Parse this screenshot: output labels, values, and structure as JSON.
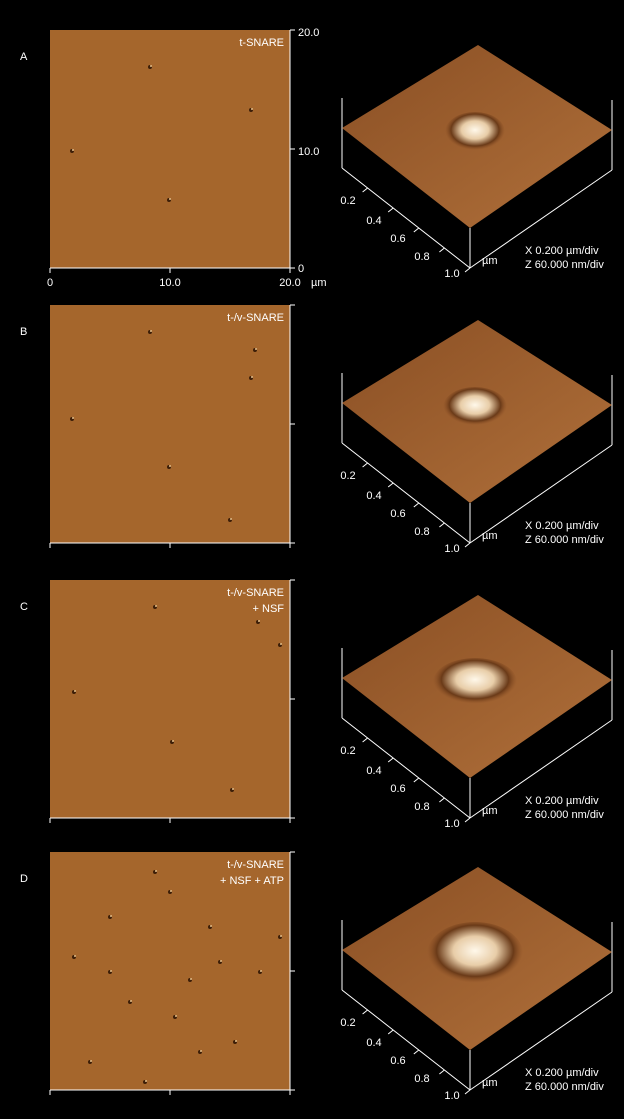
{
  "panels": [
    {
      "letter": "A",
      "label": [
        "t-SNARE"
      ],
      "scale": {
        "x_ticks": [
          "0",
          "10.0",
          "20.0"
        ],
        "x_unit": "µm",
        "y_ticks": [
          "20.0",
          "10.0",
          "0"
        ]
      },
      "surface": {
        "ticks": [
          "0.2",
          "0.4",
          "0.6",
          "0.8",
          "1.0"
        ],
        "unit": "µm",
        "x_scale": "X 0.200 µm/div",
        "z_scale": "Z 60.000 nm/div"
      }
    },
    {
      "letter": "B",
      "label": [
        "t-/v-SNARE"
      ],
      "surface": {
        "ticks": [
          "0.2",
          "0.4",
          "0.6",
          "0.8",
          "1.0"
        ],
        "unit": "µm",
        "x_scale": "X 0.200 µm/div",
        "z_scale": "Z 60.000 nm/div"
      }
    },
    {
      "letter": "C",
      "label": [
        "t-/v-SNARE",
        "+ NSF"
      ],
      "surface": {
        "ticks": [
          "0.2",
          "0.4",
          "0.6",
          "0.8",
          "1.0"
        ],
        "unit": "µm",
        "x_scale": "X 0.200 µm/div",
        "z_scale": "Z 60.000 nm/div"
      }
    },
    {
      "letter": "D",
      "label": [
        "t-/v-SNARE",
        "+ NSF + ATP"
      ],
      "surface": {
        "ticks": [
          "0.2",
          "0.4",
          "0.6",
          "0.8",
          "1.0"
        ],
        "unit": "µm",
        "x_scale": "X 0.200 µm/div",
        "z_scale": "Z 60.000 nm/div"
      }
    }
  ]
}
